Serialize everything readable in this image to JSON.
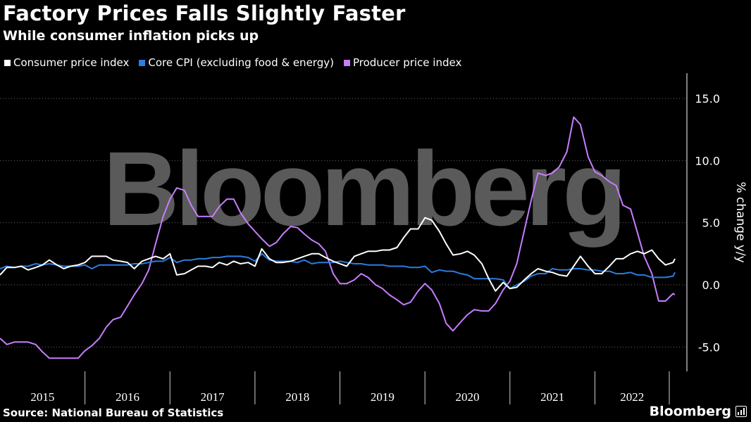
{
  "header": {
    "title": "Factory Prices Falls Slightly Faster",
    "subtitle": "While consumer inflation picks up"
  },
  "footer": {
    "source": "Source: National Bureau of Statistics",
    "brand": "Bloomberg"
  },
  "watermark": "Bloomberg",
  "colors": {
    "background": "#000000",
    "cpi": "#ffffff",
    "core": "#2a7de1",
    "ppi": "#c77dff",
    "grid": "#666666",
    "watermark": "#5a5a5a"
  },
  "chart_data": {
    "type": "line",
    "title": "Factory Prices Falls Slightly Faster",
    "subtitle": "While consumer inflation picks up",
    "ylabel": "% change y/y",
    "xlabel": "",
    "ylim": [
      -7,
      17
    ],
    "yticks": [
      15,
      10,
      5,
      0,
      -5
    ],
    "ytick_labels": [
      "15.0",
      "10.0",
      "5.0",
      "0.0",
      "-5.0"
    ],
    "xlim": [
      2015.0,
      2022.875
    ],
    "years": [
      "2015",
      "2016",
      "2017",
      "2018",
      "2019",
      "2020",
      "2021",
      "2022"
    ],
    "legend_position": "top-left",
    "grid": "horizontal dotted",
    "series": [
      {
        "name": "Consumer price index",
        "color": "#ffffff",
        "points": [
          [
            2015.0,
            0.8
          ],
          [
            2015.08,
            1.4
          ],
          [
            2015.17,
            1.4
          ],
          [
            2015.25,
            1.5
          ],
          [
            2015.33,
            1.2
          ],
          [
            2015.42,
            1.4
          ],
          [
            2015.5,
            1.6
          ],
          [
            2015.58,
            2.0
          ],
          [
            2015.67,
            1.6
          ],
          [
            2015.75,
            1.3
          ],
          [
            2015.83,
            1.5
          ],
          [
            2015.92,
            1.6
          ],
          [
            2016.0,
            1.8
          ],
          [
            2016.08,
            2.3
          ],
          [
            2016.17,
            2.3
          ],
          [
            2016.25,
            2.3
          ],
          [
            2016.33,
            2.0
          ],
          [
            2016.42,
            1.9
          ],
          [
            2016.5,
            1.8
          ],
          [
            2016.58,
            1.3
          ],
          [
            2016.67,
            1.9
          ],
          [
            2016.75,
            2.1
          ],
          [
            2016.83,
            2.3
          ],
          [
            2016.92,
            2.1
          ],
          [
            2017.0,
            2.5
          ],
          [
            2017.08,
            0.8
          ],
          [
            2017.17,
            0.9
          ],
          [
            2017.25,
            1.2
          ],
          [
            2017.33,
            1.5
          ],
          [
            2017.42,
            1.5
          ],
          [
            2017.5,
            1.4
          ],
          [
            2017.58,
            1.8
          ],
          [
            2017.67,
            1.6
          ],
          [
            2017.75,
            1.9
          ],
          [
            2017.83,
            1.7
          ],
          [
            2017.92,
            1.8
          ],
          [
            2018.0,
            1.5
          ],
          [
            2018.08,
            2.9
          ],
          [
            2018.17,
            2.1
          ],
          [
            2018.25,
            1.8
          ],
          [
            2018.33,
            1.8
          ],
          [
            2018.42,
            1.9
          ],
          [
            2018.5,
            2.1
          ],
          [
            2018.58,
            2.3
          ],
          [
            2018.67,
            2.5
          ],
          [
            2018.75,
            2.5
          ],
          [
            2018.83,
            2.2
          ],
          [
            2018.92,
            1.9
          ],
          [
            2019.0,
            1.7
          ],
          [
            2019.08,
            1.5
          ],
          [
            2019.17,
            2.3
          ],
          [
            2019.25,
            2.5
          ],
          [
            2019.33,
            2.7
          ],
          [
            2019.42,
            2.7
          ],
          [
            2019.5,
            2.8
          ],
          [
            2019.58,
            2.8
          ],
          [
            2019.67,
            3.0
          ],
          [
            2019.75,
            3.8
          ],
          [
            2019.83,
            4.5
          ],
          [
            2019.92,
            4.5
          ],
          [
            2020.0,
            5.4
          ],
          [
            2020.08,
            5.2
          ],
          [
            2020.17,
            4.3
          ],
          [
            2020.25,
            3.3
          ],
          [
            2020.33,
            2.4
          ],
          [
            2020.42,
            2.5
          ],
          [
            2020.5,
            2.7
          ],
          [
            2020.58,
            2.4
          ],
          [
            2020.67,
            1.7
          ],
          [
            2020.75,
            0.5
          ],
          [
            2020.83,
            -0.5
          ],
          [
            2020.92,
            0.2
          ],
          [
            2021.0,
            -0.3
          ],
          [
            2021.08,
            -0.2
          ],
          [
            2021.17,
            0.4
          ],
          [
            2021.25,
            0.9
          ],
          [
            2021.33,
            1.3
          ],
          [
            2021.42,
            1.1
          ],
          [
            2021.5,
            1.0
          ],
          [
            2021.58,
            0.8
          ],
          [
            2021.67,
            0.7
          ],
          [
            2021.75,
            1.5
          ],
          [
            2021.83,
            2.3
          ],
          [
            2021.92,
            1.5
          ],
          [
            2022.0,
            0.9
          ],
          [
            2022.08,
            0.9
          ],
          [
            2022.17,
            1.5
          ],
          [
            2022.25,
            2.1
          ],
          [
            2022.33,
            2.1
          ],
          [
            2022.42,
            2.5
          ],
          [
            2022.5,
            2.7
          ],
          [
            2022.58,
            2.5
          ],
          [
            2022.67,
            2.8
          ],
          [
            2022.75,
            2.1
          ],
          [
            2022.83,
            1.6
          ],
          [
            2022.92,
            1.8
          ],
          [
            2023.0,
            2.1
          ]
        ]
      },
      {
        "name": "Core CPI (excluding food & energy)",
        "color": "#2a7de1",
        "points": [
          [
            2015.0,
            1.3
          ],
          [
            2015.08,
            1.5
          ],
          [
            2015.17,
            1.4
          ],
          [
            2015.25,
            1.5
          ],
          [
            2015.33,
            1.5
          ],
          [
            2015.42,
            1.7
          ],
          [
            2015.5,
            1.6
          ],
          [
            2015.58,
            1.7
          ],
          [
            2015.67,
            1.6
          ],
          [
            2015.75,
            1.5
          ],
          [
            2015.83,
            1.5
          ],
          [
            2015.92,
            1.5
          ],
          [
            2016.0,
            1.6
          ],
          [
            2016.08,
            1.3
          ],
          [
            2016.17,
            1.6
          ],
          [
            2016.25,
            1.6
          ],
          [
            2016.33,
            1.6
          ],
          [
            2016.42,
            1.6
          ],
          [
            2016.5,
            1.6
          ],
          [
            2016.58,
            1.7
          ],
          [
            2016.67,
            1.7
          ],
          [
            2016.75,
            1.8
          ],
          [
            2016.83,
            1.9
          ],
          [
            2016.92,
            1.9
          ],
          [
            2017.0,
            2.2
          ],
          [
            2017.08,
            1.8
          ],
          [
            2017.17,
            2.0
          ],
          [
            2017.25,
            2.0
          ],
          [
            2017.33,
            2.1
          ],
          [
            2017.42,
            2.1
          ],
          [
            2017.5,
            2.2
          ],
          [
            2017.58,
            2.2
          ],
          [
            2017.67,
            2.3
          ],
          [
            2017.75,
            2.3
          ],
          [
            2017.83,
            2.3
          ],
          [
            2017.92,
            2.2
          ],
          [
            2018.0,
            1.9
          ],
          [
            2018.08,
            2.5
          ],
          [
            2018.17,
            2.0
          ],
          [
            2018.25,
            1.9
          ],
          [
            2018.33,
            1.9
          ],
          [
            2018.42,
            1.9
          ],
          [
            2018.5,
            1.8
          ],
          [
            2018.58,
            2.0
          ],
          [
            2018.67,
            1.7
          ],
          [
            2018.75,
            1.8
          ],
          [
            2018.83,
            1.8
          ],
          [
            2018.92,
            1.8
          ],
          [
            2019.0,
            1.9
          ],
          [
            2019.08,
            1.8
          ],
          [
            2019.17,
            1.7
          ],
          [
            2019.25,
            1.7
          ],
          [
            2019.33,
            1.6
          ],
          [
            2019.42,
            1.6
          ],
          [
            2019.5,
            1.6
          ],
          [
            2019.58,
            1.5
          ],
          [
            2019.67,
            1.5
          ],
          [
            2019.75,
            1.5
          ],
          [
            2019.83,
            1.4
          ],
          [
            2019.92,
            1.4
          ],
          [
            2020.0,
            1.5
          ],
          [
            2020.08,
            1.0
          ],
          [
            2020.17,
            1.2
          ],
          [
            2020.25,
            1.1
          ],
          [
            2020.33,
            1.1
          ],
          [
            2020.42,
            0.9
          ],
          [
            2020.5,
            0.8
          ],
          [
            2020.58,
            0.5
          ],
          [
            2020.67,
            0.5
          ],
          [
            2020.75,
            0.5
          ],
          [
            2020.83,
            0.5
          ],
          [
            2020.92,
            0.4
          ],
          [
            2021.0,
            -0.3
          ],
          [
            2021.08,
            0.0
          ],
          [
            2021.17,
            0.3
          ],
          [
            2021.25,
            0.7
          ],
          [
            2021.33,
            0.9
          ],
          [
            2021.42,
            0.9
          ],
          [
            2021.5,
            1.3
          ],
          [
            2021.58,
            1.2
          ],
          [
            2021.67,
            1.2
          ],
          [
            2021.75,
            1.3
          ],
          [
            2021.83,
            1.3
          ],
          [
            2021.92,
            1.2
          ],
          [
            2022.0,
            1.2
          ],
          [
            2022.08,
            1.1
          ],
          [
            2022.17,
            1.1
          ],
          [
            2022.25,
            0.9
          ],
          [
            2022.33,
            0.9
          ],
          [
            2022.42,
            1.0
          ],
          [
            2022.5,
            0.8
          ],
          [
            2022.58,
            0.8
          ],
          [
            2022.67,
            0.6
          ],
          [
            2022.75,
            0.6
          ],
          [
            2022.83,
            0.6
          ],
          [
            2022.92,
            0.7
          ],
          [
            2023.0,
            1.0
          ]
        ]
      },
      {
        "name": "Producer price index",
        "color": "#c77dff",
        "points": [
          [
            2015.0,
            -4.3
          ],
          [
            2015.08,
            -4.8
          ],
          [
            2015.17,
            -4.6
          ],
          [
            2015.25,
            -4.6
          ],
          [
            2015.33,
            -4.6
          ],
          [
            2015.42,
            -4.8
          ],
          [
            2015.5,
            -5.4
          ],
          [
            2015.58,
            -5.9
          ],
          [
            2015.67,
            -5.9
          ],
          [
            2015.75,
            -5.9
          ],
          [
            2015.83,
            -5.9
          ],
          [
            2015.92,
            -5.9
          ],
          [
            2016.0,
            -5.3
          ],
          [
            2016.08,
            -4.9
          ],
          [
            2016.17,
            -4.3
          ],
          [
            2016.25,
            -3.4
          ],
          [
            2016.33,
            -2.8
          ],
          [
            2016.42,
            -2.6
          ],
          [
            2016.5,
            -1.7
          ],
          [
            2016.58,
            -0.8
          ],
          [
            2016.67,
            0.1
          ],
          [
            2016.75,
            1.2
          ],
          [
            2016.83,
            3.3
          ],
          [
            2016.92,
            5.5
          ],
          [
            2017.0,
            6.9
          ],
          [
            2017.08,
            7.8
          ],
          [
            2017.17,
            7.6
          ],
          [
            2017.25,
            6.4
          ],
          [
            2017.33,
            5.5
          ],
          [
            2017.42,
            5.5
          ],
          [
            2017.5,
            5.5
          ],
          [
            2017.58,
            6.3
          ],
          [
            2017.67,
            6.9
          ],
          [
            2017.75,
            6.9
          ],
          [
            2017.83,
            5.8
          ],
          [
            2017.92,
            4.9
          ],
          [
            2018.0,
            4.3
          ],
          [
            2018.08,
            3.7
          ],
          [
            2018.17,
            3.1
          ],
          [
            2018.25,
            3.4
          ],
          [
            2018.33,
            4.1
          ],
          [
            2018.42,
            4.7
          ],
          [
            2018.5,
            4.6
          ],
          [
            2018.58,
            4.1
          ],
          [
            2018.67,
            3.6
          ],
          [
            2018.75,
            3.3
          ],
          [
            2018.83,
            2.7
          ],
          [
            2018.92,
            0.9
          ],
          [
            2019.0,
            0.1
          ],
          [
            2019.08,
            0.1
          ],
          [
            2019.17,
            0.4
          ],
          [
            2019.25,
            0.9
          ],
          [
            2019.33,
            0.6
          ],
          [
            2019.42,
            0.0
          ],
          [
            2019.5,
            -0.3
          ],
          [
            2019.58,
            -0.8
          ],
          [
            2019.67,
            -1.2
          ],
          [
            2019.75,
            -1.6
          ],
          [
            2019.83,
            -1.4
          ],
          [
            2019.92,
            -0.5
          ],
          [
            2020.0,
            0.1
          ],
          [
            2020.08,
            -0.4
          ],
          [
            2020.17,
            -1.5
          ],
          [
            2020.25,
            -3.1
          ],
          [
            2020.33,
            -3.7
          ],
          [
            2020.42,
            -3.0
          ],
          [
            2020.5,
            -2.4
          ],
          [
            2020.58,
            -2.0
          ],
          [
            2020.67,
            -2.1
          ],
          [
            2020.75,
            -2.1
          ],
          [
            2020.83,
            -1.5
          ],
          [
            2020.92,
            -0.4
          ],
          [
            2021.0,
            0.3
          ],
          [
            2021.08,
            1.7
          ],
          [
            2021.17,
            4.4
          ],
          [
            2021.25,
            6.8
          ],
          [
            2021.33,
            9.0
          ],
          [
            2021.42,
            8.8
          ],
          [
            2021.5,
            9.0
          ],
          [
            2021.58,
            9.5
          ],
          [
            2021.67,
            10.7
          ],
          [
            2021.75,
            13.5
          ],
          [
            2021.83,
            12.9
          ],
          [
            2021.92,
            10.3
          ],
          [
            2022.0,
            9.1
          ],
          [
            2022.08,
            8.8
          ],
          [
            2022.17,
            8.3
          ],
          [
            2022.25,
            8.0
          ],
          [
            2022.33,
            6.4
          ],
          [
            2022.42,
            6.1
          ],
          [
            2022.5,
            4.2
          ],
          [
            2022.58,
            2.3
          ],
          [
            2022.67,
            0.9
          ],
          [
            2022.75,
            -1.3
          ],
          [
            2022.83,
            -1.3
          ],
          [
            2022.92,
            -0.7
          ],
          [
            2023.0,
            -0.8
          ]
        ]
      }
    ]
  }
}
